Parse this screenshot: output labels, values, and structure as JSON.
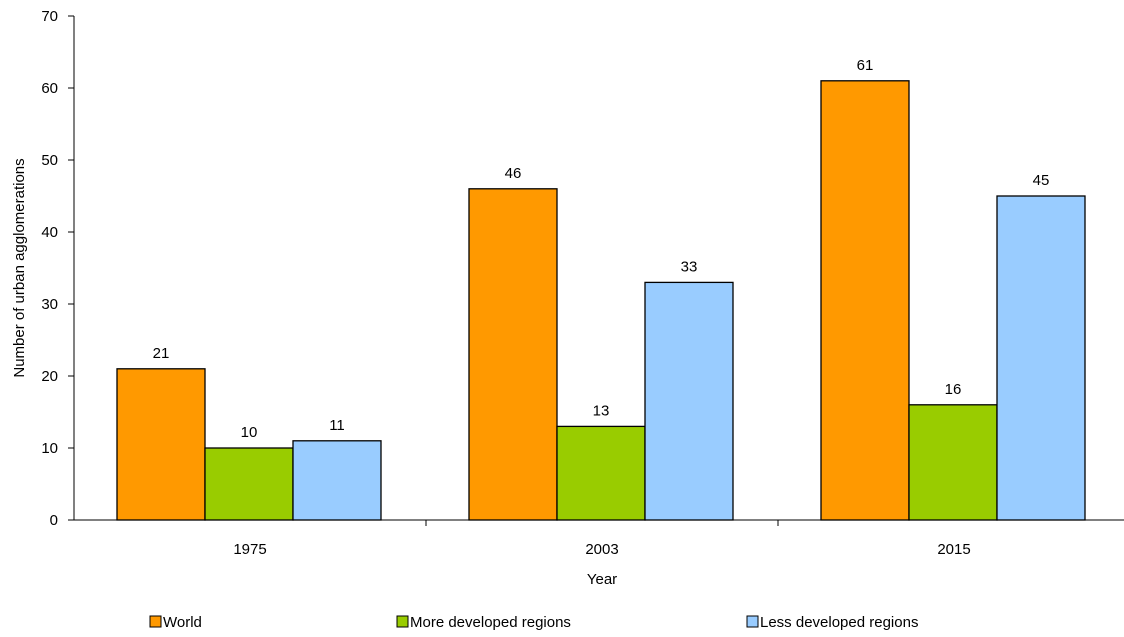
{
  "chart_data": {
    "type": "bar",
    "categories": [
      "1975",
      "2003",
      "2015"
    ],
    "series": [
      {
        "name": "World",
        "values": [
          21,
          46,
          61
        ],
        "color": "#ff9900"
      },
      {
        "name": "More developed regions",
        "values": [
          10,
          13,
          16
        ],
        "color": "#99cc00"
      },
      {
        "name": "Less developed regions",
        "values": [
          11,
          33,
          45
        ],
        "color": "#99ccff"
      }
    ],
    "xlabel": "Year",
    "ylabel": "Number of urban agglomerations",
    "ylim": [
      0,
      70
    ],
    "yticks": [
      0,
      10,
      20,
      30,
      40,
      50,
      60,
      70
    ],
    "grid": false,
    "data_labels": true,
    "legend_position": "bottom"
  }
}
